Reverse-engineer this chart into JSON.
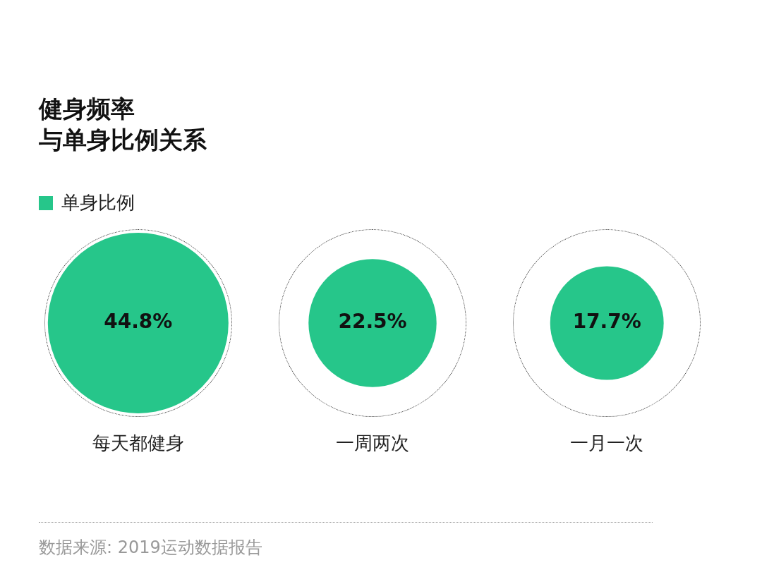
{
  "chart_data": {
    "type": "other",
    "title": "健身频率",
    "subtitle": "与单身比例关系",
    "categories": [
      "每天都健身",
      "一周两次",
      "一月一次"
    ],
    "series": [
      {
        "name": "单身比例",
        "color": "#26c68a",
        "values": [
          44.8,
          22.5,
          17.7
        ],
        "value_labels": [
          "44.8%",
          "22.5%",
          "17.7%"
        ]
      }
    ],
    "legend": "top left",
    "annotations": [
      "数据来源: 2019运动数据报告"
    ]
  }
}
